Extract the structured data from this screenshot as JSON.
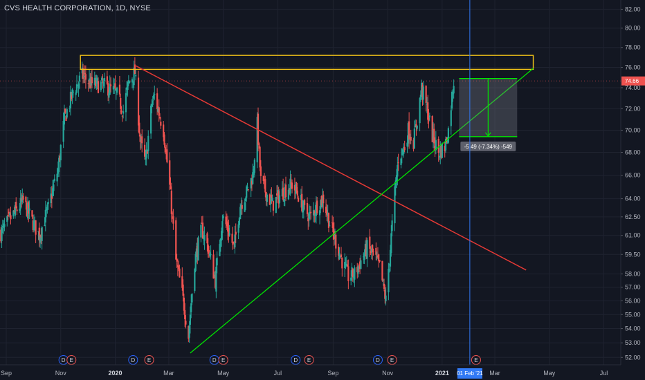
{
  "header": {
    "title": "CVS HEALTH CORPORATION, 1D, NYSE"
  },
  "colors": {
    "background": "#131722",
    "up": "#26a69a",
    "down": "#ef5350",
    "resistance_line": "#e53935",
    "support_line": "#00e600",
    "zone": "#f5c518",
    "crosshair": "#3179f5",
    "axis_text": "#b2b5be",
    "current_price_tag": "#ef5350"
  },
  "chart_data": {
    "type": "candlestick",
    "title": "CVS HEALTH CORPORATION, 1D, NYSE",
    "interval": "1D",
    "exchange": "NYSE",
    "y_scale": "log",
    "ylim": [
      51.5,
      83.0
    ],
    "x_range": [
      "2019-08-25",
      "2021-07-20"
    ],
    "y_ticks": [
      52.0,
      53.0,
      54.0,
      55.0,
      56.0,
      57.0,
      58.0,
      59.5,
      61.0,
      62.5,
      64.0,
      66.0,
      68.0,
      70.0,
      72.0,
      74.0,
      76.0,
      78.0,
      80.0,
      82.0
    ],
    "y_tick_labels": [
      "52.00",
      "53.00",
      "54.00",
      "55.00",
      "56.00",
      "57.00",
      "58.00",
      "59.50",
      "61.00",
      "62.50",
      "64.00",
      "66.00",
      "68.00",
      "70.00",
      "72.00",
      "74.00",
      "76.00",
      "78.00",
      "80.00",
      "82.00"
    ],
    "x_ticks": [
      {
        "date": "2019-09-01",
        "label": "Sep"
      },
      {
        "date": "2019-11-01",
        "label": "Nov"
      },
      {
        "date": "2020-01-01",
        "label": "2020",
        "bold": true
      },
      {
        "date": "2020-03-01",
        "label": "Mar"
      },
      {
        "date": "2020-05-01",
        "label": "May"
      },
      {
        "date": "2020-07-01",
        "label": "Jul"
      },
      {
        "date": "2020-09-01",
        "label": "Sep"
      },
      {
        "date": "2020-11-01",
        "label": "Nov"
      },
      {
        "date": "2021-01-01",
        "label": "2021",
        "bold": true
      },
      {
        "date": "2021-03-01",
        "label": "Mar"
      },
      {
        "date": "2021-05-01",
        "label": "May"
      },
      {
        "date": "2021-07-01",
        "label": "Jul"
      }
    ],
    "series": [
      {
        "kind": "ohlc-path",
        "anchors": [
          [
            "2019-08-26",
            61.2
          ],
          [
            "2019-09-05",
            62.3
          ],
          [
            "2019-09-20",
            63.8
          ],
          [
            "2019-10-01",
            62.0
          ],
          [
            "2019-10-08",
            61.0
          ],
          [
            "2019-10-18",
            63.2
          ],
          [
            "2019-10-29",
            66.5
          ],
          [
            "2019-11-05",
            71.0
          ],
          [
            "2019-11-15",
            73.6
          ],
          [
            "2019-11-25",
            75.2
          ],
          [
            "2019-12-05",
            74.4
          ],
          [
            "2019-12-20",
            74.2
          ],
          [
            "2020-01-02",
            73.5
          ],
          [
            "2020-01-10",
            71.8
          ],
          [
            "2020-01-16",
            74.5
          ],
          [
            "2020-01-23",
            75.5
          ],
          [
            "2020-01-29",
            69.0
          ],
          [
            "2020-02-04",
            67.0
          ],
          [
            "2020-02-11",
            72.5
          ],
          [
            "2020-02-14",
            73.2
          ],
          [
            "2020-02-24",
            70.0
          ],
          [
            "2020-03-02",
            65.0
          ],
          [
            "2020-03-09",
            59.0
          ],
          [
            "2020-03-16",
            56.5
          ],
          [
            "2020-03-23",
            53.5
          ],
          [
            "2020-03-30",
            59.0
          ],
          [
            "2020-04-07",
            61.5
          ],
          [
            "2020-04-14",
            60.0
          ],
          [
            "2020-04-22",
            57.5
          ],
          [
            "2020-04-30",
            62.5
          ],
          [
            "2020-05-06",
            61.5
          ],
          [
            "2020-05-13",
            60.0
          ],
          [
            "2020-05-20",
            63.5
          ],
          [
            "2020-05-27",
            64.5
          ],
          [
            "2020-06-03",
            66.0
          ],
          [
            "2020-06-08",
            70.5
          ],
          [
            "2020-06-12",
            65.5
          ],
          [
            "2020-06-18",
            64.5
          ],
          [
            "2020-06-25",
            63.5
          ],
          [
            "2020-07-02",
            64.2
          ],
          [
            "2020-07-10",
            64.8
          ],
          [
            "2020-07-17",
            65.2
          ],
          [
            "2020-07-24",
            64.3
          ],
          [
            "2020-07-31",
            63.0
          ],
          [
            "2020-08-07",
            62.5
          ],
          [
            "2020-08-14",
            63.5
          ],
          [
            "2020-08-21",
            64.0
          ],
          [
            "2020-08-28",
            62.0
          ],
          [
            "2020-09-04",
            60.5
          ],
          [
            "2020-09-11",
            59.0
          ],
          [
            "2020-09-18",
            57.8
          ],
          [
            "2020-09-25",
            58.0
          ],
          [
            "2020-10-02",
            59.0
          ],
          [
            "2020-10-09",
            60.0
          ],
          [
            "2020-10-16",
            59.5
          ],
          [
            "2020-10-23",
            58.5
          ],
          [
            "2020-10-30",
            56.0
          ],
          [
            "2020-11-04",
            60.0
          ],
          [
            "2020-11-09",
            64.5
          ],
          [
            "2020-11-13",
            67.5
          ],
          [
            "2020-11-20",
            68.5
          ],
          [
            "2020-11-24",
            70.0
          ],
          [
            "2020-11-30",
            69.0
          ],
          [
            "2020-12-04",
            71.0
          ],
          [
            "2020-12-09",
            74.0
          ],
          [
            "2020-12-15",
            72.0
          ],
          [
            "2020-12-21",
            69.5
          ],
          [
            "2020-12-28",
            68.0
          ],
          [
            "2021-01-04",
            68.5
          ],
          [
            "2021-01-08",
            70.0
          ],
          [
            "2021-01-13",
            74.0
          ],
          [
            "2021-01-14",
            74.66
          ]
        ]
      }
    ],
    "annotations": {
      "resistance_zone": {
        "from": "2019-11-23",
        "to": "2021-04-13",
        "low": 75.8,
        "high": 77.2
      },
      "descending_trendline": {
        "from": [
          "2020-01-23",
          76.2
        ],
        "to": [
          "2021-04-05",
          58.3
        ]
      },
      "ascending_trendline": {
        "from": [
          "2020-03-25",
          52.3
        ],
        "to": [
          "2021-04-13",
          75.9
        ]
      },
      "measure_box": {
        "from": "2021-01-20",
        "to": "2021-03-26",
        "high": 74.9,
        "low": 69.41
      },
      "measure_label": "-5.49 (-7.34%) -549",
      "crosshair_date": "2021-02-01",
      "crosshair_date_label": "01 Feb '21",
      "current_price": 74.66,
      "current_price_label": "74.66"
    },
    "events": [
      {
        "date": "2019-11-04",
        "label": "D",
        "kind": "dividend"
      },
      {
        "date": "2019-11-13",
        "label": "E",
        "kind": "earnings"
      },
      {
        "date": "2020-01-21",
        "label": "D",
        "kind": "dividend"
      },
      {
        "date": "2020-02-08",
        "label": "E",
        "kind": "earnings"
      },
      {
        "date": "2020-04-21",
        "label": "D",
        "kind": "dividend"
      },
      {
        "date": "2020-05-01",
        "label": "E",
        "kind": "earnings"
      },
      {
        "date": "2020-07-21",
        "label": "D",
        "kind": "dividend"
      },
      {
        "date": "2020-08-05",
        "label": "E",
        "kind": "earnings"
      },
      {
        "date": "2020-10-21",
        "label": "D",
        "kind": "dividend"
      },
      {
        "date": "2020-11-06",
        "label": "E",
        "kind": "earnings"
      },
      {
        "date": "2021-02-08",
        "label": "E",
        "kind": "earnings"
      }
    ]
  }
}
